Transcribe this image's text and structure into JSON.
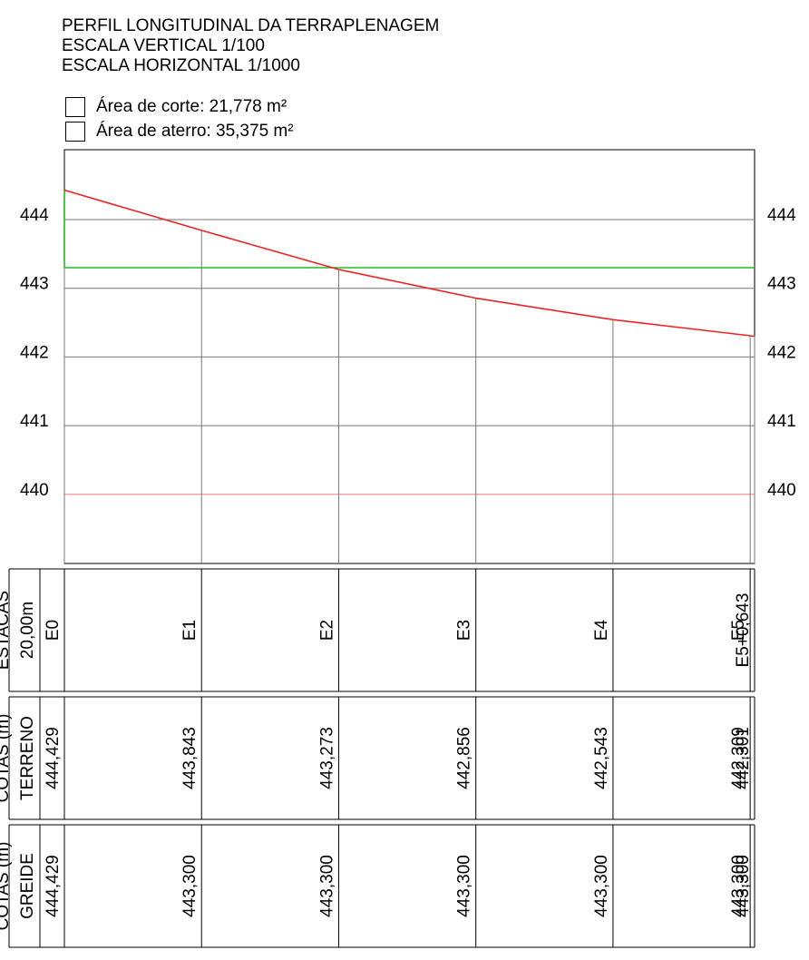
{
  "header": {
    "title": "PERFIL LONGITUDINAL DA TERRAPLENAGEM",
    "vertical_scale": "ESCALA VERTICAL 1/100",
    "horizontal_scale": "ESCALA HORIZONTAL 1/1000"
  },
  "legend": {
    "cut_area": "Área de corte: 21,778 m²",
    "fill_area": "Área de aterro: 35,375 m²"
  },
  "colors": {
    "terrain_line": "#ee2222",
    "grade_line": "#22bb22",
    "reference_line": "#f4a0a0",
    "grid": "#777777",
    "frame": "#000000"
  },
  "table": {
    "stations_group": "ESTACAS",
    "stations_spacing": "20,00m",
    "terrain_group": "COTAS (m)",
    "terrain_label": "TERRENO",
    "grade_group": "COTAS (m)",
    "grade_label": "GREIDE"
  },
  "chart_data": {
    "type": "line",
    "ylim": [
      439.0,
      444.4
    ],
    "y_ticks": [
      "444",
      "443",
      "442",
      "441",
      "440"
    ],
    "reference_level": 440,
    "stations": [
      "E0",
      "E1",
      "E2",
      "E3",
      "E4",
      "E5",
      "E5+0,643"
    ],
    "station_distances": [
      0,
      20,
      40,
      60,
      80,
      100,
      100.643
    ],
    "series": [
      {
        "values": [
          444.429,
          443.843,
          443.273,
          442.856,
          442.543,
          442.309,
          442.301
        ]
      },
      {
        "values": [
          444.429,
          443.3,
          443.3,
          443.3,
          443.3,
          443.3,
          443.3
        ]
      }
    ],
    "terrain_labels": [
      "444,429",
      "443,843",
      "443,273",
      "442,856",
      "442,543",
      "442,309",
      "442,301"
    ],
    "grade_labels": [
      "444,429",
      "443,300",
      "443,300",
      "443,300",
      "443,300",
      "443,300",
      "443,300"
    ]
  }
}
